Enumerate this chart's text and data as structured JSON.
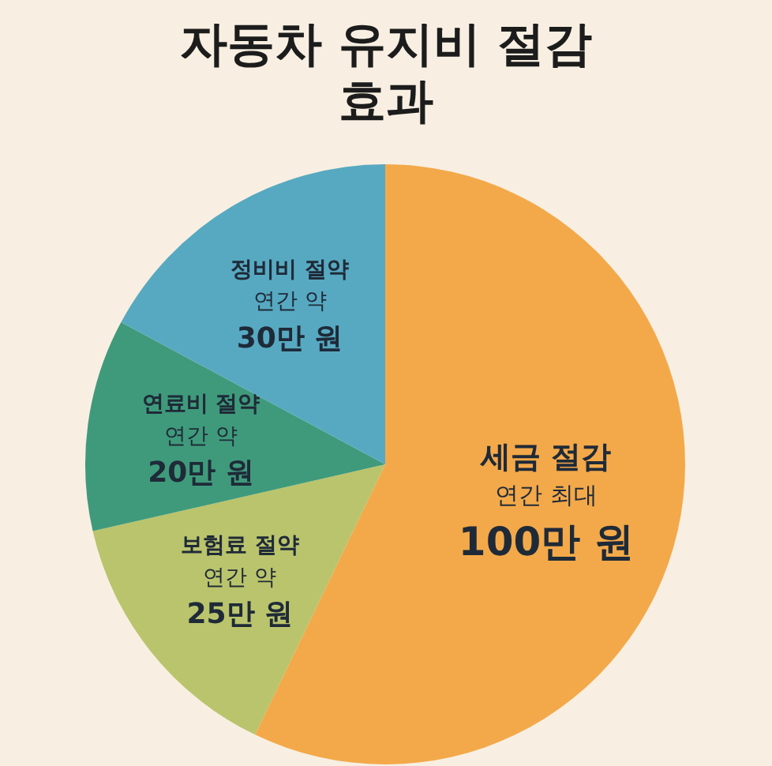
{
  "chart_data": {
    "type": "pie",
    "title": "자동차 유지비 절감 효과",
    "categories": [
      "세금 절감",
      "보험료 절약",
      "연료비 절약",
      "정비비 절약"
    ],
    "values": [
      100,
      25,
      20,
      30
    ],
    "colors": [
      "#f3a94a",
      "#bac46c",
      "#3f9a7b",
      "#57a9c1"
    ],
    "value_labels": [
      "연간 최대\n100만 원",
      "연간 약\n25만 원",
      "연간 약\n20만 원",
      "연간 약\n30만 원"
    ]
  }
}
